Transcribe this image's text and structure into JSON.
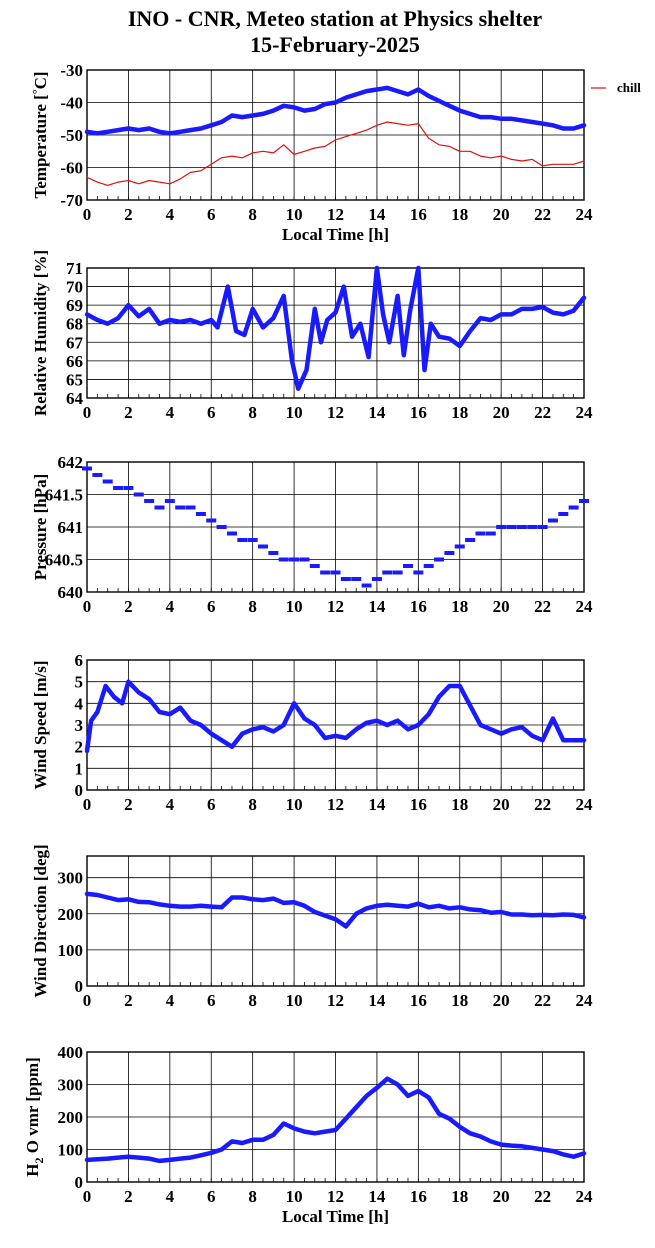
{
  "title": "INO - CNR, Meteo station at Physics shelter",
  "subtitle": "15-February-2025",
  "colors": {
    "blue": "#1a1aff",
    "red": "#e01010",
    "grid": "#000000"
  },
  "xaxis": {
    "label": "Local Time [h]",
    "ticks": [
      0,
      2,
      4,
      6,
      8,
      10,
      12,
      14,
      16,
      18,
      20,
      22,
      24
    ],
    "range": [
      0,
      24
    ]
  },
  "chart_data": [
    {
      "type": "line",
      "ylabel": "Temperature [°C]",
      "ylim": [
        -70,
        -30
      ],
      "yticks": [
        -70,
        -60,
        -50,
        -40,
        -30
      ],
      "xlabel": "Local Time [h]",
      "legend": {
        "entries": [
          "chill"
        ],
        "placement": "right"
      },
      "series": [
        {
          "color": "blue",
          "x": [
            0,
            0.5,
            1,
            1.5,
            2,
            2.5,
            3,
            3.5,
            4,
            4.5,
            5,
            5.5,
            6,
            6.5,
            7,
            7.5,
            8,
            8.5,
            9,
            9.5,
            10,
            10.5,
            11,
            11.5,
            12,
            12.5,
            13,
            13.5,
            14,
            14.5,
            15,
            15.5,
            16,
            16.5,
            17,
            17.5,
            18,
            18.5,
            19,
            19.5,
            20,
            20.5,
            21,
            21.5,
            22,
            22.5,
            23,
            23.5,
            24
          ],
          "values": [
            -49,
            -49.5,
            -49,
            -48.5,
            -48,
            -48.5,
            -48,
            -49,
            -49.5,
            -49,
            -48.5,
            -48,
            -47,
            -46,
            -44,
            -44.5,
            -44,
            -43.5,
            -42.5,
            -41,
            -41.5,
            -42.5,
            -42,
            -40.5,
            -40,
            -38.5,
            -37.5,
            -36.5,
            -36,
            -35.5,
            -36.5,
            -37.5,
            -36,
            -38,
            -39.5,
            -41,
            -42.5,
            -43.5,
            -44.5,
            -44.5,
            -45,
            -45,
            -45.5,
            -46,
            -46.5,
            -47,
            -48,
            -48,
            -47
          ]
        },
        {
          "name": "chill",
          "color": "red",
          "x": [
            0,
            0.5,
            1,
            1.5,
            2,
            2.5,
            3,
            3.5,
            4,
            4.5,
            5,
            5.5,
            6,
            6.5,
            7,
            7.5,
            8,
            8.5,
            9,
            9.5,
            10,
            10.5,
            11,
            11.5,
            12,
            12.5,
            13,
            13.5,
            14,
            14.5,
            15,
            15.5,
            16,
            16.5,
            17,
            17.5,
            18,
            18.5,
            19,
            19.5,
            20,
            20.5,
            21,
            21.5,
            22,
            22.5,
            23,
            23.5,
            24
          ],
          "values": [
            -63,
            -64.5,
            -65.5,
            -64.5,
            -64,
            -65,
            -64,
            -64.5,
            -65,
            -63.5,
            -61.5,
            -61,
            -59,
            -57,
            -56.5,
            -57,
            -55.5,
            -55,
            -55.5,
            -53,
            -56,
            -55,
            -54,
            -53.5,
            -51.5,
            -50.5,
            -49.5,
            -48.5,
            -47,
            -46,
            -46.5,
            -47,
            -46.5,
            -51,
            -53,
            -53.5,
            -55,
            -55,
            -56.5,
            -57,
            -56.5,
            -57.5,
            -58,
            -57.5,
            -59.5,
            -59,
            -59,
            -59,
            -58
          ]
        }
      ]
    },
    {
      "type": "line",
      "ylabel": "Relative Humidity [%]",
      "ylim": [
        64,
        71
      ],
      "yticks": [
        64,
        65,
        66,
        67,
        68,
        69,
        70,
        71
      ],
      "series": [
        {
          "color": "blue",
          "x": [
            0,
            0.5,
            1,
            1.5,
            2,
            2.5,
            3,
            3.5,
            4,
            4.5,
            5,
            5.5,
            6,
            6.3,
            6.8,
            7.2,
            7.6,
            8,
            8.5,
            9,
            9.5,
            9.9,
            10.2,
            10.6,
            11,
            11.3,
            11.6,
            12,
            12.4,
            12.8,
            13.2,
            13.6,
            14,
            14.3,
            14.6,
            15,
            15.3,
            15.6,
            16,
            16.3,
            16.6,
            17,
            17.5,
            18,
            18.5,
            19,
            19.5,
            20,
            20.5,
            21,
            21.5,
            22,
            22.5,
            23,
            23.5,
            24
          ],
          "values": [
            68.5,
            68.2,
            68,
            68.3,
            69,
            68.4,
            68.8,
            68,
            68.2,
            68.1,
            68.2,
            68,
            68.2,
            67.8,
            70,
            67.6,
            67.4,
            68.8,
            67.8,
            68.3,
            69.5,
            66,
            64.5,
            65.5,
            68.8,
            67,
            68.2,
            68.6,
            70,
            67.3,
            68,
            66.2,
            71,
            68.5,
            67,
            69.5,
            66.3,
            68.7,
            71,
            65.5,
            68,
            67.3,
            67.2,
            66.8,
            67.6,
            68.3,
            68.2,
            68.5,
            68.5,
            68.8,
            68.8,
            68.9,
            68.6,
            68.5,
            68.7,
            69.4
          ]
        }
      ]
    },
    {
      "type": "scatter",
      "ylabel": "Pressure [hPa]",
      "ylim": [
        640,
        642
      ],
      "yticks": [
        640,
        640.5,
        641,
        641.5,
        642
      ],
      "yticklabels": [
        "640",
        "640.5",
        "641",
        "641.5",
        "642"
      ],
      "series": [
        {
          "color": "blue",
          "x": [
            0,
            0.5,
            1,
            1.5,
            2,
            2.5,
            3,
            3.5,
            4,
            4.5,
            5,
            5.5,
            6,
            6.5,
            7,
            7.5,
            8,
            8.5,
            9,
            9.5,
            10,
            10.5,
            11,
            11.5,
            12,
            12.5,
            13,
            13.5,
            14,
            14.5,
            15,
            15.5,
            16,
            16.5,
            17,
            17.5,
            18,
            18.5,
            19,
            19.5,
            20,
            20.5,
            21,
            21.5,
            22,
            22.5,
            23,
            23.5,
            24
          ],
          "values": [
            641.9,
            641.8,
            641.7,
            641.6,
            641.6,
            641.5,
            641.4,
            641.3,
            641.4,
            641.3,
            641.3,
            641.2,
            641.1,
            641.0,
            640.9,
            640.8,
            640.8,
            640.7,
            640.6,
            640.5,
            640.5,
            640.5,
            640.4,
            640.3,
            640.3,
            640.2,
            640.2,
            640.1,
            640.2,
            640.3,
            640.3,
            640.4,
            640.3,
            640.4,
            640.5,
            640.6,
            640.7,
            640.8,
            640.9,
            640.9,
            641.0,
            641.0,
            641.0,
            641.0,
            641.0,
            641.1,
            641.2,
            641.3,
            641.4
          ]
        }
      ]
    },
    {
      "type": "line",
      "ylabel": "Wind Speed [m/s]",
      "ylim": [
        0,
        6
      ],
      "yticks": [
        0,
        1,
        2,
        3,
        4,
        5,
        6
      ],
      "series": [
        {
          "color": "blue",
          "x": [
            0,
            0.2,
            0.5,
            0.9,
            1.3,
            1.7,
            2,
            2.5,
            3,
            3.5,
            4,
            4.5,
            5,
            5.5,
            6,
            6.5,
            7,
            7.5,
            8,
            8.5,
            9,
            9.5,
            10,
            10.5,
            11,
            11.5,
            12,
            12.5,
            13,
            13.5,
            14,
            14.5,
            15,
            15.5,
            16,
            16.5,
            17,
            17.5,
            18,
            18.5,
            19,
            19.5,
            20,
            20.5,
            21,
            21.5,
            22,
            22.5,
            23,
            23.5,
            24
          ],
          "values": [
            1.8,
            3.2,
            3.6,
            4.8,
            4.3,
            4.0,
            5.0,
            4.5,
            4.2,
            3.6,
            3.5,
            3.8,
            3.2,
            3.0,
            2.6,
            2.3,
            2.0,
            2.6,
            2.8,
            2.9,
            2.7,
            3.0,
            4.0,
            3.3,
            3.0,
            2.4,
            2.5,
            2.4,
            2.8,
            3.1,
            3.2,
            3.0,
            3.2,
            2.8,
            3.0,
            3.5,
            4.3,
            4.8,
            4.8,
            3.9,
            3.0,
            2.8,
            2.6,
            2.8,
            2.9,
            2.5,
            2.3,
            3.3,
            2.3,
            2.3,
            2.3
          ]
        }
      ]
    },
    {
      "type": "line",
      "ylabel": "Wind Direction [deg]",
      "ylim": [
        0,
        360
      ],
      "yticks": [
        0,
        100,
        200,
        300
      ],
      "series": [
        {
          "color": "blue",
          "x": [
            0,
            0.5,
            1,
            1.5,
            2,
            2.5,
            3,
            3.5,
            4,
            4.5,
            5,
            5.5,
            6,
            6.5,
            7,
            7.5,
            8,
            8.5,
            9,
            9.5,
            10,
            10.5,
            11,
            11.5,
            12,
            12.5,
            13,
            13.5,
            14,
            14.5,
            15,
            15.5,
            16,
            16.5,
            17,
            17.5,
            18,
            18.5,
            19,
            19.5,
            20,
            20.5,
            21,
            21.5,
            22,
            22.5,
            23,
            23.5,
            24
          ],
          "values": [
            255,
            252,
            245,
            238,
            240,
            233,
            232,
            226,
            222,
            220,
            220,
            222,
            220,
            218,
            245,
            245,
            240,
            238,
            242,
            230,
            232,
            222,
            205,
            195,
            185,
            165,
            200,
            215,
            222,
            225,
            222,
            220,
            228,
            218,
            222,
            215,
            218,
            212,
            210,
            203,
            205,
            198,
            198,
            196,
            197,
            196,
            198,
            197,
            190
          ]
        }
      ]
    },
    {
      "type": "line",
      "ylabel": "H2 O vmr [ppm]",
      "ylim": [
        0,
        400
      ],
      "yticks": [
        0,
        100,
        200,
        300,
        400
      ],
      "xlabel": "Local Time [h]",
      "series": [
        {
          "color": "blue",
          "x": [
            0,
            0.5,
            1,
            1.5,
            2,
            2.5,
            3,
            3.5,
            4,
            4.5,
            5,
            5.5,
            6,
            6.5,
            7,
            7.5,
            8,
            8.5,
            9,
            9.5,
            10,
            10.5,
            11,
            11.5,
            12,
            12.5,
            13,
            13.5,
            14,
            14.5,
            15,
            15.5,
            16,
            16.5,
            17,
            17.5,
            18,
            18.5,
            19,
            19.5,
            20,
            20.5,
            21,
            21.5,
            22,
            22.5,
            23,
            23.5,
            24
          ],
          "values": [
            68,
            70,
            72,
            75,
            78,
            75,
            72,
            65,
            68,
            72,
            75,
            82,
            90,
            100,
            125,
            120,
            130,
            130,
            145,
            180,
            165,
            155,
            150,
            155,
            160,
            195,
            230,
            265,
            290,
            318,
            300,
            265,
            280,
            260,
            210,
            195,
            170,
            150,
            140,
            125,
            115,
            112,
            110,
            105,
            100,
            95,
            85,
            78,
            88
          ]
        }
      ]
    }
  ],
  "panel_labels": {
    "temp_y1": "Temperature [",
    "temp_deg": "°",
    "temp_y2": "C]",
    "h2o_h": "H",
    "h2o_sub": "2",
    "h2o_rest": " O vmr [ppm]"
  }
}
